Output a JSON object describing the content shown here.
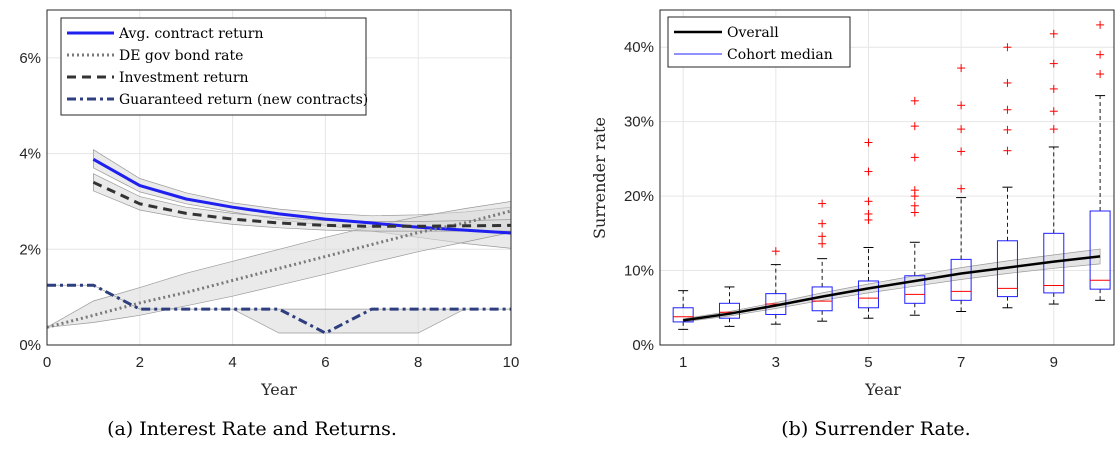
{
  "colors": {
    "avg": "#1f1ff0",
    "bond": "#7a7a7a",
    "inv": "#333333",
    "guar": "#2e3f7f",
    "band": "#d9d9d9",
    "grid": "#e6e6e6",
    "overall": "#000000",
    "median": "#ff0000",
    "box": "#2020ff",
    "outlier": "#ff0000"
  },
  "chart_data": [
    {
      "type": "line",
      "caption": "(a) Interest Rate and Returns.",
      "xlabel": "Year",
      "ylabel": "",
      "xlim": [
        0,
        10
      ],
      "ylim": [
        0,
        7
      ],
      "xticks": [
        0,
        2,
        4,
        6,
        8,
        10
      ],
      "xticklabels": [
        "0",
        "2",
        "4",
        "6",
        "8",
        "10"
      ],
      "yticks": [
        0,
        2,
        4,
        6
      ],
      "yticklabels": [
        "0%",
        "2%",
        "4%",
        "6%"
      ],
      "grid": true,
      "legend_position": "top-left",
      "series": [
        {
          "name": "Avg. contract return",
          "style": "solid",
          "x": [
            1,
            2,
            3,
            4,
            5,
            6,
            7,
            8,
            9,
            10
          ],
          "y": [
            3.88,
            3.33,
            3.05,
            2.88,
            2.74,
            2.63,
            2.55,
            2.46,
            2.4,
            2.34
          ],
          "band_lower": [
            3.7,
            3.2,
            2.95,
            2.78,
            2.62,
            2.5,
            2.38,
            2.25,
            2.12,
            2.02
          ],
          "band_upper": [
            4.08,
            3.48,
            3.18,
            2.97,
            2.84,
            2.75,
            2.7,
            2.72,
            2.78,
            2.88
          ]
        },
        {
          "name": "DE gov bond rate",
          "style": "dotted",
          "x": [
            0,
            1,
            2,
            3,
            4,
            5,
            6,
            7,
            8,
            9,
            10
          ],
          "y": [
            0.37,
            0.62,
            0.88,
            1.1,
            1.35,
            1.6,
            1.85,
            2.1,
            2.35,
            2.55,
            2.8
          ],
          "band_lower": [
            0.37,
            0.47,
            0.62,
            0.82,
            1.02,
            1.25,
            1.48,
            1.72,
            1.95,
            2.15,
            2.35
          ],
          "band_upper": [
            0.37,
            0.92,
            1.2,
            1.5,
            1.75,
            2.0,
            2.25,
            2.48,
            2.68,
            2.85,
            3.0
          ]
        },
        {
          "name": "Investment return",
          "style": "dashed",
          "x": [
            1,
            2,
            3,
            4,
            5,
            6,
            7,
            8,
            9,
            10
          ],
          "y": [
            3.4,
            2.95,
            2.75,
            2.63,
            2.55,
            2.5,
            2.48,
            2.48,
            2.49,
            2.5
          ],
          "band_lower": [
            3.22,
            2.82,
            2.64,
            2.52,
            2.45,
            2.4,
            2.38,
            2.38,
            2.38,
            2.38
          ],
          "band_upper": [
            3.58,
            3.1,
            2.88,
            2.75,
            2.66,
            2.6,
            2.58,
            2.58,
            2.6,
            2.62
          ]
        },
        {
          "name": "Guaranteed return (new contracts)",
          "style": "dashdot",
          "x": [
            0,
            1,
            2,
            3,
            4,
            5,
            6,
            7,
            8,
            9,
            10
          ],
          "y": [
            1.25,
            1.25,
            0.75,
            0.75,
            0.75,
            0.75,
            0.25,
            0.75,
            0.75,
            0.75,
            0.75
          ],
          "band_lower": [
            1.25,
            1.25,
            0.75,
            0.75,
            0.75,
            0.25,
            0.25,
            0.25,
            0.25,
            0.75,
            0.75
          ],
          "band_upper": [
            1.25,
            1.25,
            0.75,
            0.75,
            0.75,
            0.75,
            0.75,
            0.75,
            0.75,
            0.75,
            0.75
          ]
        }
      ]
    },
    {
      "type": "box",
      "caption": "(b) Surrender Rate.",
      "xlabel": "Year",
      "ylabel": "Surrender rate",
      "xlim": [
        0.5,
        10.3
      ],
      "ylim": [
        0,
        45
      ],
      "xticks": [
        1,
        3,
        5,
        7,
        9
      ],
      "xticklabels": [
        "1",
        "3",
        "5",
        "7",
        "9"
      ],
      "yticks": [
        0,
        10,
        20,
        30,
        40
      ],
      "yticklabels": [
        "0%",
        "10%",
        "20%",
        "30%",
        "40%"
      ],
      "grid": true,
      "legend_position": "top-left",
      "legend": [
        "Overall",
        "Cohort median"
      ],
      "overall": {
        "name": "Overall",
        "x": [
          1,
          2,
          3,
          4,
          5,
          6,
          7,
          8,
          9,
          10
        ],
        "y": [
          3.3,
          4.2,
          5.3,
          6.5,
          7.6,
          8.6,
          9.6,
          10.4,
          11.2,
          11.9
        ],
        "band_lower": [
          3.1,
          3.9,
          4.9,
          6.0,
          7.0,
          7.9,
          8.8,
          9.6,
          10.3,
          10.9
        ],
        "band_upper": [
          3.5,
          4.5,
          5.7,
          7.0,
          8.2,
          9.3,
          10.4,
          11.3,
          12.1,
          12.9
        ]
      },
      "boxes": [
        {
          "x": 1,
          "whisker_low": 2.1,
          "q1": 3.1,
          "median": 3.8,
          "q3": 5.0,
          "whisker_high": 7.3,
          "outliers": []
        },
        {
          "x": 2,
          "whisker_low": 2.5,
          "q1": 3.6,
          "median": 4.4,
          "q3": 5.6,
          "whisker_high": 7.8,
          "outliers": []
        },
        {
          "x": 3,
          "whisker_low": 2.8,
          "q1": 4.1,
          "median": 5.5,
          "q3": 6.9,
          "whisker_high": 10.8,
          "outliers": [
            12.6
          ]
        },
        {
          "x": 4,
          "whisker_low": 3.2,
          "q1": 4.6,
          "median": 5.9,
          "q3": 7.8,
          "whisker_high": 11.6,
          "outliers": [
            13.6,
            14.6,
            16.3,
            19.0
          ]
        },
        {
          "x": 5,
          "whisker_low": 3.6,
          "q1": 5.0,
          "median": 6.3,
          "q3": 8.6,
          "whisker_high": 13.1,
          "outliers": [
            16.8,
            17.6,
            19.3,
            23.3,
            27.2
          ]
        },
        {
          "x": 6,
          "whisker_low": 4.0,
          "q1": 5.6,
          "median": 6.8,
          "q3": 9.3,
          "whisker_high": 13.8,
          "outliers": [
            17.8,
            18.7,
            20.0,
            20.8,
            25.2,
            29.4,
            32.8
          ]
        },
        {
          "x": 7,
          "whisker_low": 4.5,
          "q1": 6.0,
          "median": 7.2,
          "q3": 11.5,
          "whisker_high": 19.8,
          "outliers": [
            21.0,
            26.0,
            29.0,
            32.2,
            37.2
          ]
        },
        {
          "x": 8,
          "whisker_low": 5.0,
          "q1": 6.5,
          "median": 7.6,
          "q3": 14.0,
          "whisker_high": 21.2,
          "outliers": [
            26.1,
            28.9,
            31.6,
            35.2,
            40.0
          ]
        },
        {
          "x": 9,
          "whisker_low": 5.5,
          "q1": 7.0,
          "median": 8.0,
          "q3": 15.0,
          "whisker_high": 26.6,
          "outliers": [
            29.0,
            31.4,
            34.4,
            37.8,
            41.8
          ]
        },
        {
          "x": 10,
          "whisker_low": 6.0,
          "q1": 7.5,
          "median": 8.7,
          "q3": 18.0,
          "whisker_high": 33.5,
          "outliers": [
            36.4,
            39.0,
            43.0
          ]
        }
      ]
    }
  ]
}
